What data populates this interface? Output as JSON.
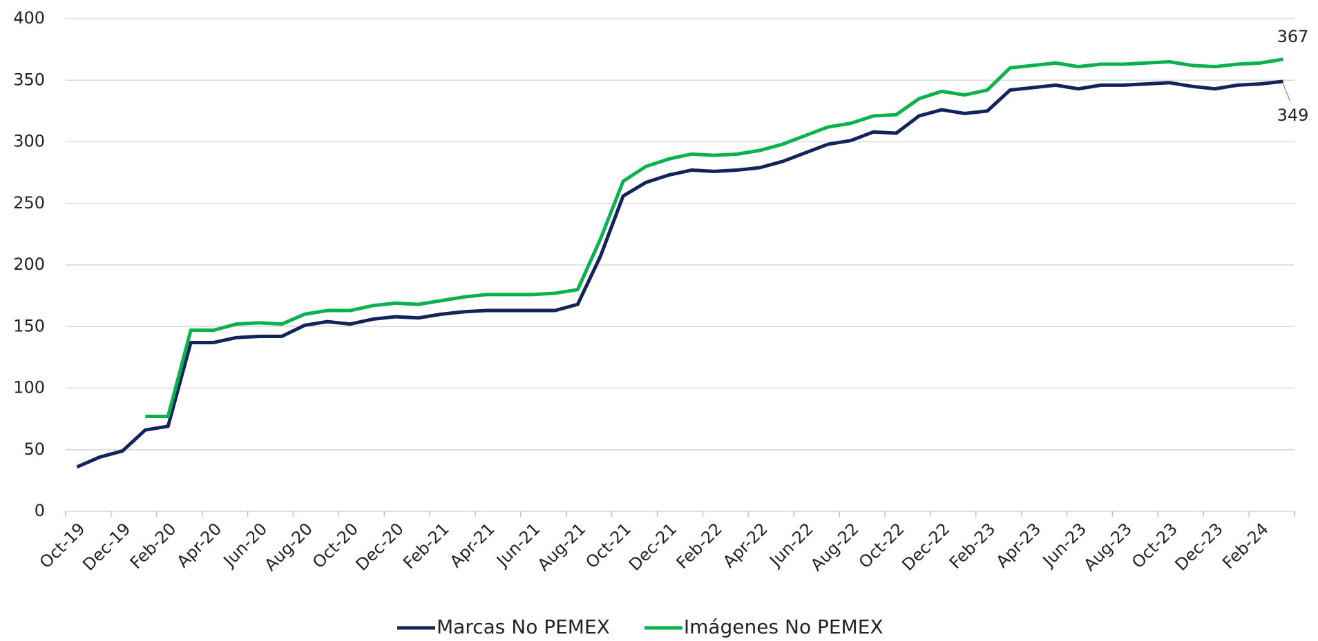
{
  "chart_data": {
    "type": "line",
    "categories": [
      "Oct-19",
      null,
      "Dec-19",
      null,
      "Feb-20",
      null,
      "Apr-20",
      null,
      "Jun-20",
      null,
      "Aug-20",
      null,
      "Oct-20",
      null,
      "Dec-20",
      null,
      "Feb-21",
      null,
      "Apr-21",
      null,
      "Jun-21",
      null,
      "Aug-21",
      null,
      "Oct-21",
      null,
      "Dec-21",
      null,
      "Feb-22",
      null,
      "Apr-22",
      null,
      "Jun-22",
      null,
      "Aug-22",
      null,
      "Oct-22",
      null,
      "Dec-22",
      null,
      "Feb-23",
      null,
      "Apr-23",
      null,
      "Jun-23",
      null,
      "Aug-23",
      null,
      "Oct-23",
      null,
      "Dec-23",
      null,
      "Feb-24",
      null
    ],
    "series": [
      {
        "name": "Marcas No PEMEX",
        "color": "#13235b",
        "values": [
          36,
          44,
          49,
          66,
          69,
          137,
          137,
          141,
          142,
          142,
          151,
          154,
          152,
          156,
          158,
          157,
          160,
          162,
          163,
          163,
          163,
          163,
          168,
          207,
          256,
          267,
          273,
          277,
          276,
          277,
          279,
          284,
          291,
          298,
          301,
          308,
          307,
          321,
          326,
          323,
          325,
          342,
          344,
          346,
          343,
          346,
          346,
          347,
          348,
          345,
          343,
          346,
          347,
          349
        ]
      },
      {
        "name": "Imágenes No PEMEX",
        "color": "#0bb04f",
        "values": [
          null,
          null,
          null,
          77,
          77,
          147,
          147,
          152,
          153,
          152,
          160,
          163,
          163,
          167,
          169,
          168,
          171,
          174,
          176,
          176,
          176,
          177,
          180,
          221,
          268,
          280,
          286,
          290,
          289,
          290,
          293,
          298,
          305,
          312,
          315,
          321,
          322,
          335,
          341,
          338,
          342,
          360,
          362,
          364,
          361,
          363,
          363,
          364,
          365,
          362,
          361,
          363,
          364,
          367
        ]
      }
    ],
    "ylim": [
      0,
      400
    ],
    "yticks": [
      0,
      50,
      100,
      150,
      200,
      250,
      300,
      350,
      400
    ],
    "grid": true,
    "legend": "bottom"
  }
}
